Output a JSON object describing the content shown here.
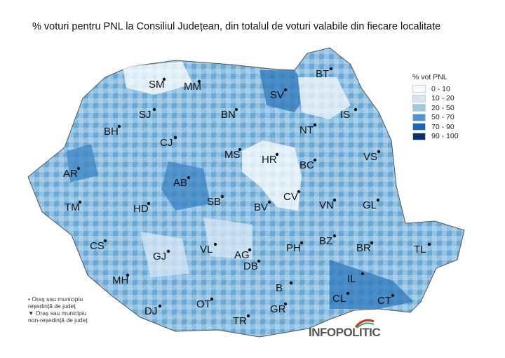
{
  "title": "% voturi pentru PNL la Consiliul Județean, din totalul de voturi valabile din fiecare localitate",
  "legend": {
    "title": "% vot PNL",
    "items": [
      {
        "label": "0 - 10",
        "color": "#f7fbff"
      },
      {
        "label": "10 - 20",
        "color": "#d3e4f3"
      },
      {
        "label": "20 - 50",
        "color": "#9ecae1"
      },
      {
        "label": "50 - 70",
        "color": "#4f96cb"
      },
      {
        "label": "70 - 90",
        "color": "#1f66b0"
      },
      {
        "label": "90 - 100",
        "color": "#08306b"
      }
    ]
  },
  "notes": [
    "• Oraș sau municipiu",
    "reședință de județ",
    "▼ Oraș sau municipiu",
    "non-reședință de județ"
  ],
  "counties": [
    "SM",
    "MM",
    "BT",
    "SV",
    "IS",
    "SJ",
    "BN",
    "BH",
    "CJ",
    "NT",
    "MS",
    "HR",
    "VS",
    "BC",
    "AR",
    "AB",
    "CV",
    "TM",
    "HD",
    "SB",
    "BV",
    "VN",
    "GL",
    "CS",
    "GJ",
    "VL",
    "AG",
    "PH",
    "BZ",
    "BR",
    "TL",
    "DB",
    "IL",
    "MH",
    "DJ",
    "OT",
    "B",
    "GR",
    "CL",
    "CT",
    "TR"
  ],
  "logo": "INFOPOLITIC"
}
